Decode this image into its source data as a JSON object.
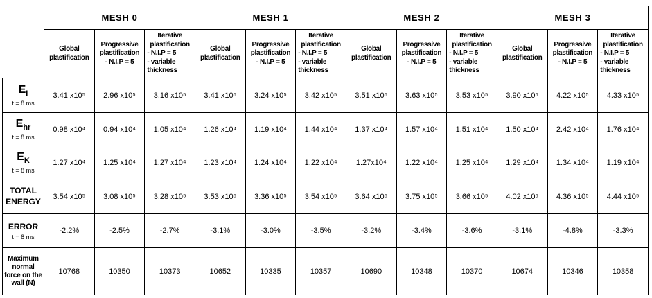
{
  "table": {
    "mesh_headers": [
      "MESH 0",
      "MESH 1",
      "MESH 2",
      "MESH 3"
    ],
    "methods": [
      {
        "name": "Global plastification",
        "lines": [
          "Global",
          "plastification"
        ]
      },
      {
        "name": "Progressive plastification - N.I.P = 5",
        "lines": [
          "Progressive",
          "plastification",
          "- N.I.P = 5"
        ]
      },
      {
        "name": "Iterative plastification - N.I.P = 5 - variable thickness",
        "lines": [
          "Iterative",
          "plastification",
          "- N.I.P = 5",
          "- variable",
          "thickness"
        ]
      }
    ],
    "rows": [
      {
        "label": {
          "main": "E",
          "sub": "I",
          "note": "t = 8 ms"
        },
        "values": [
          "3.41 x10⁵",
          "2.96 x10⁵",
          "3.16 x10⁵",
          "3.41 x10⁵",
          "3.24 x10⁵",
          "3.42 x10⁵",
          "3.51 x10⁵",
          "3.63 x10⁵",
          "3.53 x10⁵",
          "3.90 x10⁵",
          "4.22 x10⁵",
          "4.33 x10⁵"
        ]
      },
      {
        "label": {
          "main": "E",
          "sub": "hr",
          "note": "t = 8 ms"
        },
        "values": [
          "0.98 x10⁴",
          "0.94 x10⁴",
          "1.05 x10⁴",
          "1.26 x10⁴",
          "1.19 x10⁴",
          "1.44 x10⁴",
          "1.37 x10⁴",
          "1.57 x10⁴",
          "1.51 x10⁴",
          "1.50 x10⁴",
          "2.42 x10⁴",
          "1.76 x10⁴"
        ]
      },
      {
        "label": {
          "main": "E",
          "sub": "K",
          "note": "t = 8 ms"
        },
        "values": [
          "1.27 x10⁴",
          "1.25 x10⁴",
          "1.27 x10⁴",
          "1.23 x10⁴",
          "1.24 x10⁴",
          "1.22 x10⁴",
          "1.27x10⁴",
          "1.22 x10⁴",
          "1.25 x10⁴",
          "1.29 x10⁴",
          "1.34 x10⁴",
          "1.19 x10⁴"
        ]
      },
      {
        "label": {
          "main": "TOTAL ENERGY",
          "sub": "",
          "note": ""
        },
        "values": [
          "3.54 x10⁵",
          "3.08 x10⁵",
          "3.28 x10⁵",
          "3.53 x10⁵",
          "3.36 x10⁵",
          "3.54 x10⁵",
          "3.64 x10⁵",
          "3.75 x10⁵",
          "3.66 x10⁵",
          "4.02 x10⁵",
          "4.36 x10⁵",
          "4.44 x10⁵"
        ]
      },
      {
        "label": {
          "main": "ERROR",
          "sub": "",
          "note": "t = 8 ms"
        },
        "values": [
          "-2.2%",
          "-2.5%",
          "-2.7%",
          "-3.1%",
          "-3.0%",
          "-3.5%",
          "-3.2%",
          "-3.4%",
          "-3.6%",
          "-3.1%",
          "-4.8%",
          "-3.3%"
        ]
      },
      {
        "label": {
          "main": "Maximum normal force on the wall (N)",
          "sub": "",
          "note": ""
        },
        "values": [
          "10768",
          "10350",
          "10373",
          "10652",
          "10335",
          "10357",
          "10690",
          "10348",
          "10370",
          "10674",
          "10346",
          "10358"
        ]
      }
    ]
  }
}
